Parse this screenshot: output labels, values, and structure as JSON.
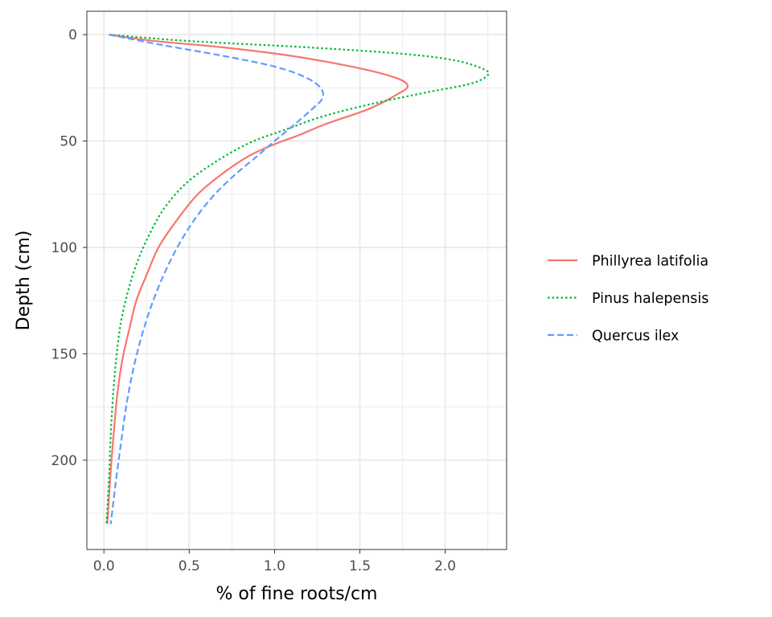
{
  "chart_data": {
    "type": "line",
    "xlabel": "% of fine roots/cm",
    "ylabel": "Depth (cm)",
    "xlim": [
      -0.1,
      2.36
    ],
    "ylim": [
      242,
      -11
    ],
    "y_reversed": true,
    "x_ticks": [
      0.0,
      0.5,
      1.0,
      1.5,
      2.0
    ],
    "x_tick_labels": [
      "0.0",
      "0.5",
      "1.0",
      "1.5",
      "2.0"
    ],
    "y_ticks": [
      0,
      50,
      100,
      150,
      200
    ],
    "y_tick_labels": [
      "0",
      "50",
      "100",
      "150",
      "200"
    ],
    "grid": true,
    "legend_position": "right",
    "colors": {
      "grid": "#ebebeb",
      "panel_border": "#333333",
      "tick": "#333333"
    },
    "series": [
      {
        "name": "Phillyrea latifolia",
        "color": "#F8766D",
        "dash": "solid",
        "points": [
          [
            0.03,
            0
          ],
          [
            0.3,
            3
          ],
          [
            0.7,
            6
          ],
          [
            1.1,
            10
          ],
          [
            1.45,
            15
          ],
          [
            1.7,
            20
          ],
          [
            1.78,
            24
          ],
          [
            1.72,
            28
          ],
          [
            1.55,
            35
          ],
          [
            1.3,
            42
          ],
          [
            1.15,
            47
          ],
          [
            1.0,
            51.5
          ],
          [
            0.85,
            57
          ],
          [
            0.7,
            65
          ],
          [
            0.55,
            75
          ],
          [
            0.42,
            88
          ],
          [
            0.32,
            100
          ],
          [
            0.25,
            113
          ],
          [
            0.19,
            125
          ],
          [
            0.15,
            138
          ],
          [
            0.11,
            152
          ],
          [
            0.08,
            168
          ],
          [
            0.06,
            185
          ],
          [
            0.04,
            205
          ],
          [
            0.02,
            230
          ]
        ]
      },
      {
        "name": "Pinus halepensis",
        "color": "#00BA38",
        "dash": "dotted",
        "points": [
          [
            0.03,
            0
          ],
          [
            0.5,
            3
          ],
          [
            1.2,
            6
          ],
          [
            1.75,
            9
          ],
          [
            2.05,
            12
          ],
          [
            2.22,
            16
          ],
          [
            2.25,
            19
          ],
          [
            2.15,
            23
          ],
          [
            1.9,
            27
          ],
          [
            1.6,
            32
          ],
          [
            1.3,
            38
          ],
          [
            1.05,
            45
          ],
          [
            0.85,
            51
          ],
          [
            0.65,
            60
          ],
          [
            0.48,
            70
          ],
          [
            0.35,
            82
          ],
          [
            0.26,
            95
          ],
          [
            0.19,
            108
          ],
          [
            0.14,
            121
          ],
          [
            0.1,
            135
          ],
          [
            0.075,
            150
          ],
          [
            0.055,
            168
          ],
          [
            0.04,
            188
          ],
          [
            0.03,
            208
          ],
          [
            0.015,
            230
          ]
        ]
      },
      {
        "name": "Quercus ilex",
        "color": "#619CFF",
        "dash": "dashed",
        "points": [
          [
            0.03,
            0
          ],
          [
            0.35,
            5
          ],
          [
            0.7,
            10
          ],
          [
            1.0,
            15
          ],
          [
            1.18,
            20
          ],
          [
            1.27,
            25
          ],
          [
            1.28,
            30
          ],
          [
            1.22,
            35
          ],
          [
            1.12,
            42
          ],
          [
            1.0,
            50
          ],
          [
            0.9,
            57
          ],
          [
            0.78,
            65
          ],
          [
            0.65,
            75
          ],
          [
            0.53,
            87
          ],
          [
            0.43,
            100
          ],
          [
            0.35,
            113
          ],
          [
            0.28,
            127
          ],
          [
            0.22,
            142
          ],
          [
            0.17,
            158
          ],
          [
            0.13,
            175
          ],
          [
            0.1,
            192
          ],
          [
            0.07,
            210
          ],
          [
            0.04,
            230
          ]
        ]
      }
    ]
  }
}
